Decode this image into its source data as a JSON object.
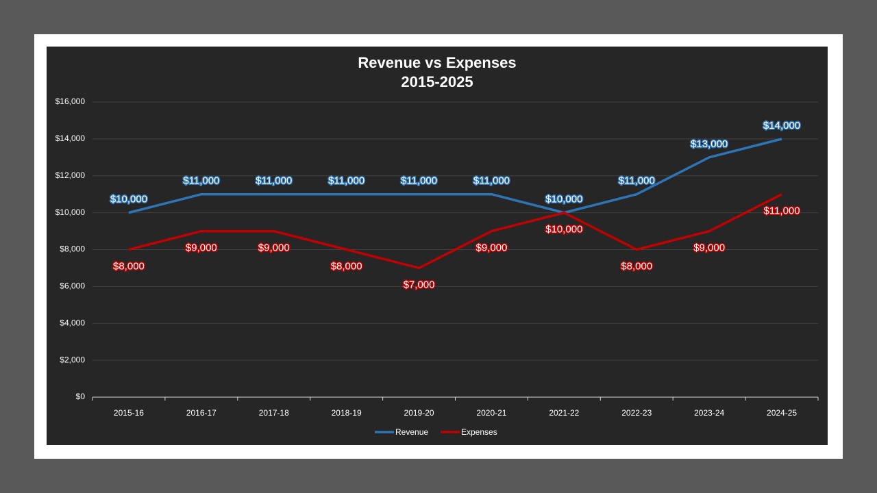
{
  "chart_data": {
    "type": "line",
    "title": "Revenue vs Expenses",
    "subtitle": "2015-2025",
    "categories": [
      "2015-16",
      "2016-17",
      "2017-18",
      "2018-19",
      "2019-20",
      "2020-21",
      "2021-22",
      "2022-23",
      "2023-24",
      "2024-25"
    ],
    "series": [
      {
        "name": "Revenue",
        "color": "#2e75b6",
        "values": [
          10000,
          11000,
          11000,
          11000,
          11000,
          11000,
          10000,
          11000,
          13000,
          14000
        ],
        "value_labels": [
          "$10,000",
          "$11,000",
          "$11,000",
          "$11,000",
          "$11,000",
          "$11,000",
          "$10,000",
          "$11,000",
          "$13,000",
          "$14,000"
        ]
      },
      {
        "name": "Expenses",
        "color": "#c00000",
        "values": [
          8000,
          9000,
          9000,
          8000,
          7000,
          9000,
          10000,
          8000,
          9000,
          11000
        ],
        "value_labels": [
          "$8,000",
          "$9,000",
          "$9,000",
          "$8,000",
          "$7,000",
          "$9,000",
          "$10,000",
          "$8,000",
          "$9,000",
          "$11,000"
        ]
      }
    ],
    "ylim": [
      0,
      16000
    ],
    "yticks": [
      {
        "value": 0,
        "label": "$0"
      },
      {
        "value": 2000,
        "label": "$2,000"
      },
      {
        "value": 4000,
        "label": "$4,000"
      },
      {
        "value": 6000,
        "label": "$6,000"
      },
      {
        "value": 8000,
        "label": "$8,000"
      },
      {
        "value": 10000,
        "label": "$10,000"
      },
      {
        "value": 12000,
        "label": "$12,000"
      },
      {
        "value": 14000,
        "label": "$14,000"
      },
      {
        "value": 16000,
        "label": "$16,000"
      }
    ],
    "grid": true,
    "legend": "bottom"
  }
}
